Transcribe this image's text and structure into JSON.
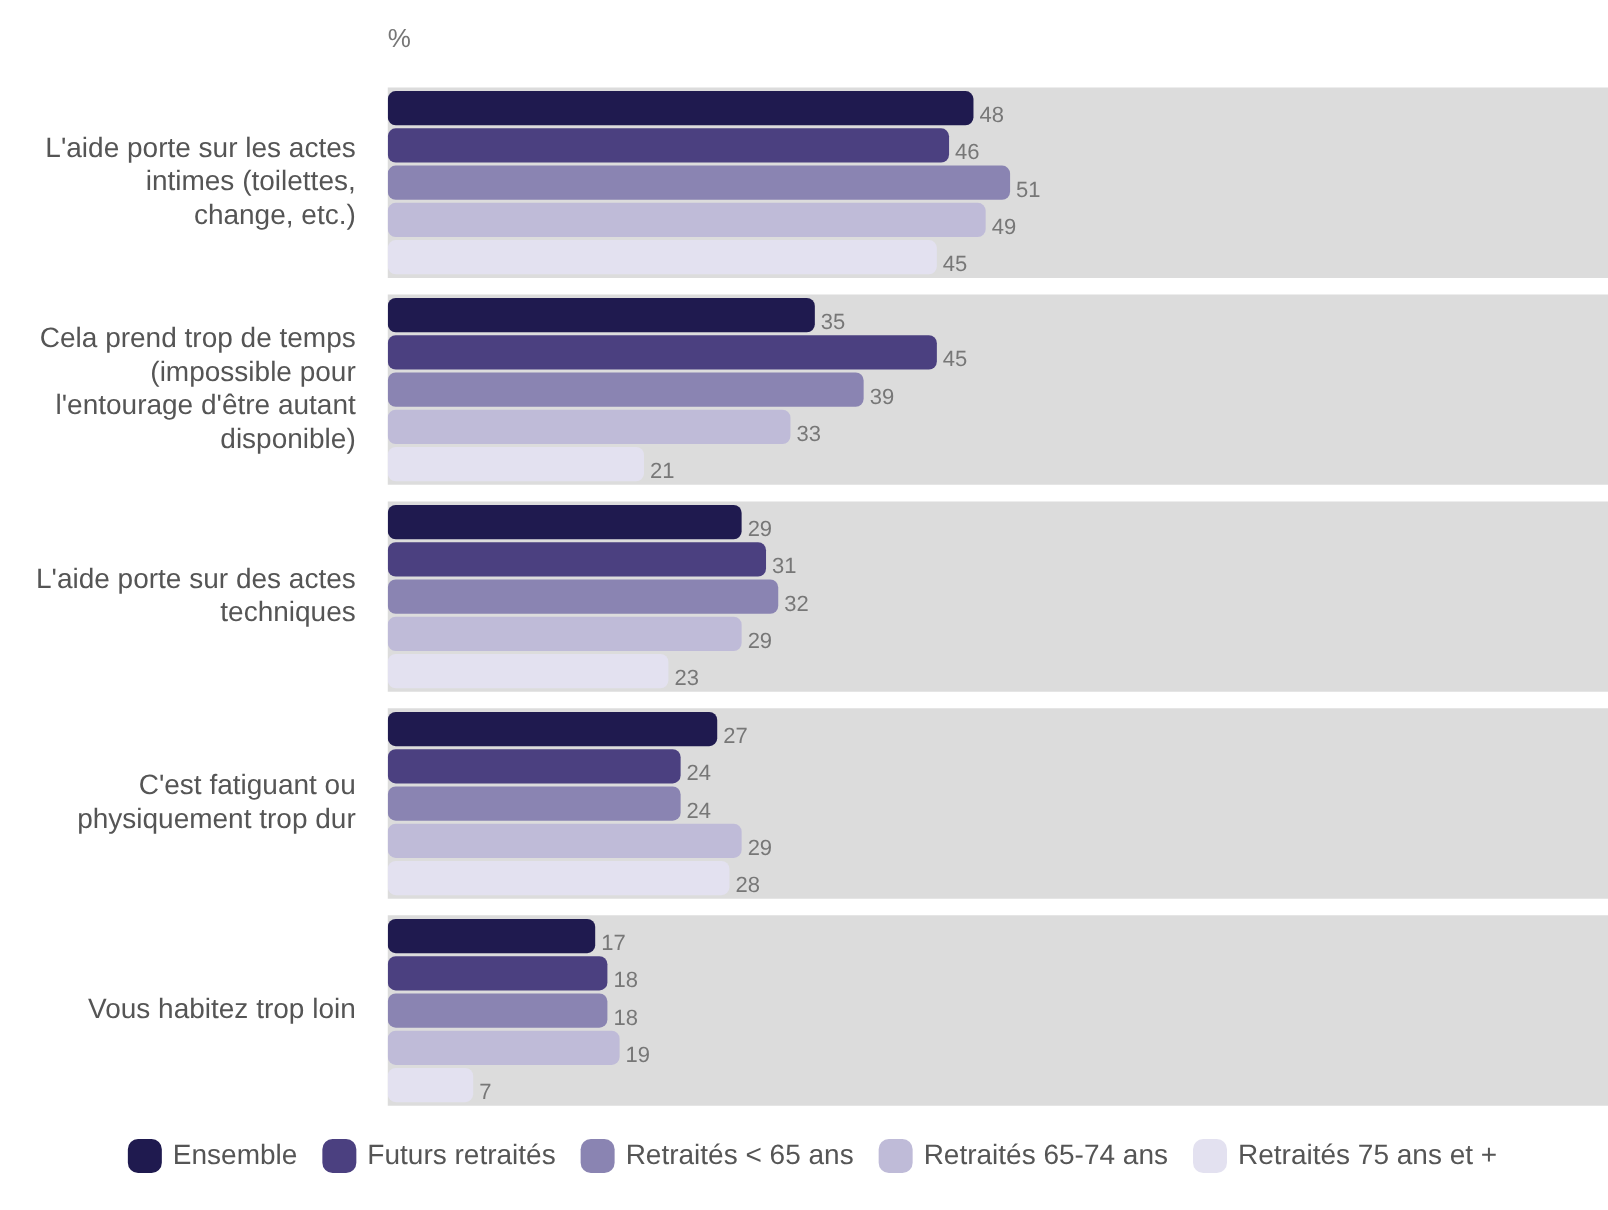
{
  "chart_data": {
    "type": "bar",
    "orientation": "horizontal",
    "xlabel": "%",
    "xlim": [
      0,
      100
    ],
    "tick_labels": false,
    "grid": false,
    "data_labels": true,
    "legend": "bottom",
    "categories": [
      "L'aide porte sur les actes intimes (toilettes, change, etc.)",
      "Cela prend trop de temps (impossible pour l'entourage d'être autant disponible)",
      "L'aide porte sur des actes techniques",
      "C'est fatiguant ou physiquement trop dur",
      "Vous habitez trop loin"
    ],
    "bands": [
      {
        "axis": "y",
        "from": "L'aide porte sur les actes intimes (toilettes, change, etc.)",
        "to": "L'aide porte sur les actes intimes (toilettes, change, etc.)",
        "color": "#dcdcdc"
      },
      {
        "axis": "y",
        "from": "Cela prend trop de temps (impossible pour l'entourage d'être autant disponible)",
        "to": "Cela prend trop de temps (impossible pour l'entourage d'être autant disponible)",
        "color": "#dcdcdc"
      },
      {
        "axis": "y",
        "from": "L'aide porte sur des actes techniques",
        "to": "L'aide porte sur des actes techniques",
        "color": "#dcdcdc"
      },
      {
        "axis": "y",
        "from": "C'est fatiguant ou physiquement trop dur",
        "to": "C'est fatiguant ou physiquement trop dur",
        "color": "#dcdcdc"
      },
      {
        "axis": "y",
        "from": "Vous habitez trop loin",
        "to": "Vous habitez trop loin",
        "color": "#dcdcdc"
      }
    ],
    "series": [
      {
        "name": "Ensemble",
        "color": "#1f1a4f",
        "values": [
          48,
          35,
          29,
          27,
          17
        ]
      },
      {
        "name": "Futurs retraités",
        "color": "#4b4080",
        "values": [
          46,
          45,
          31,
          24,
          18
        ]
      },
      {
        "name": "Retraités < 65 ans",
        "color": "#8a84b2",
        "values": [
          51,
          39,
          32,
          24,
          18
        ]
      },
      {
        "name": "Retraités 65-74 ans",
        "color": "#bfbbd8",
        "values": [
          49,
          33,
          29,
          29,
          19
        ]
      },
      {
        "name": "Retraités 75 ans et +",
        "color": "#e3e1f0",
        "values": [
          45,
          21,
          23,
          28,
          7
        ]
      }
    ]
  }
}
